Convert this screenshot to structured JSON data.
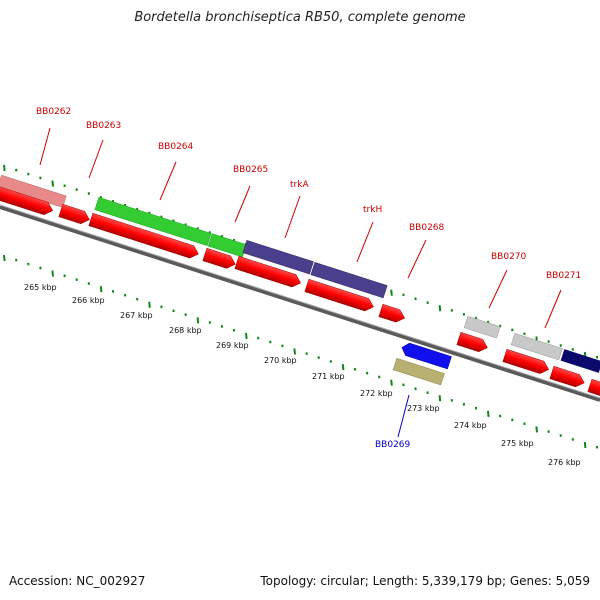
{
  "title": "Bordetella bronchiseptica RB50, complete genome",
  "accession": "Accession: NC_002927",
  "summary": "Topology: circular; Length: 5,339,179 bp; Genes: 5,059",
  "gene_labels": [
    {
      "name": "BB0262",
      "color": "#cc0000"
    },
    {
      "name": "BB0263",
      "color": "#cc0000"
    },
    {
      "name": "BB0264",
      "color": "#cc0000"
    },
    {
      "name": "BB0265",
      "color": "#cc0000"
    },
    {
      "name": "trkA",
      "color": "#cc0000"
    },
    {
      "name": "trkH",
      "color": "#cc0000"
    },
    {
      "name": "BB0268",
      "color": "#cc0000"
    },
    {
      "name": "BB0270",
      "color": "#cc0000"
    },
    {
      "name": "BB0271",
      "color": "#cc0000"
    },
    {
      "name": "BB0269",
      "color": "#0000cc"
    }
  ],
  "kbp_labels": [
    "265 kbp",
    "266 kbp",
    "267 kbp",
    "268 kbp",
    "269 kbp",
    "270 kbp",
    "271 kbp",
    "272 kbp",
    "273 kbp",
    "274 kbp",
    "275 kbp",
    "276 kbp"
  ],
  "colors": {
    "cds_red": "#ff0000",
    "pink": "#e88080",
    "green": "#33cc33",
    "purple": "#4a3f8c",
    "navy": "#0a0a6a",
    "blue": "#1010ee",
    "olive": "#b8b070",
    "gray": "#c8c8c8",
    "backbone": "#777777",
    "tick_green": "#118811"
  }
}
